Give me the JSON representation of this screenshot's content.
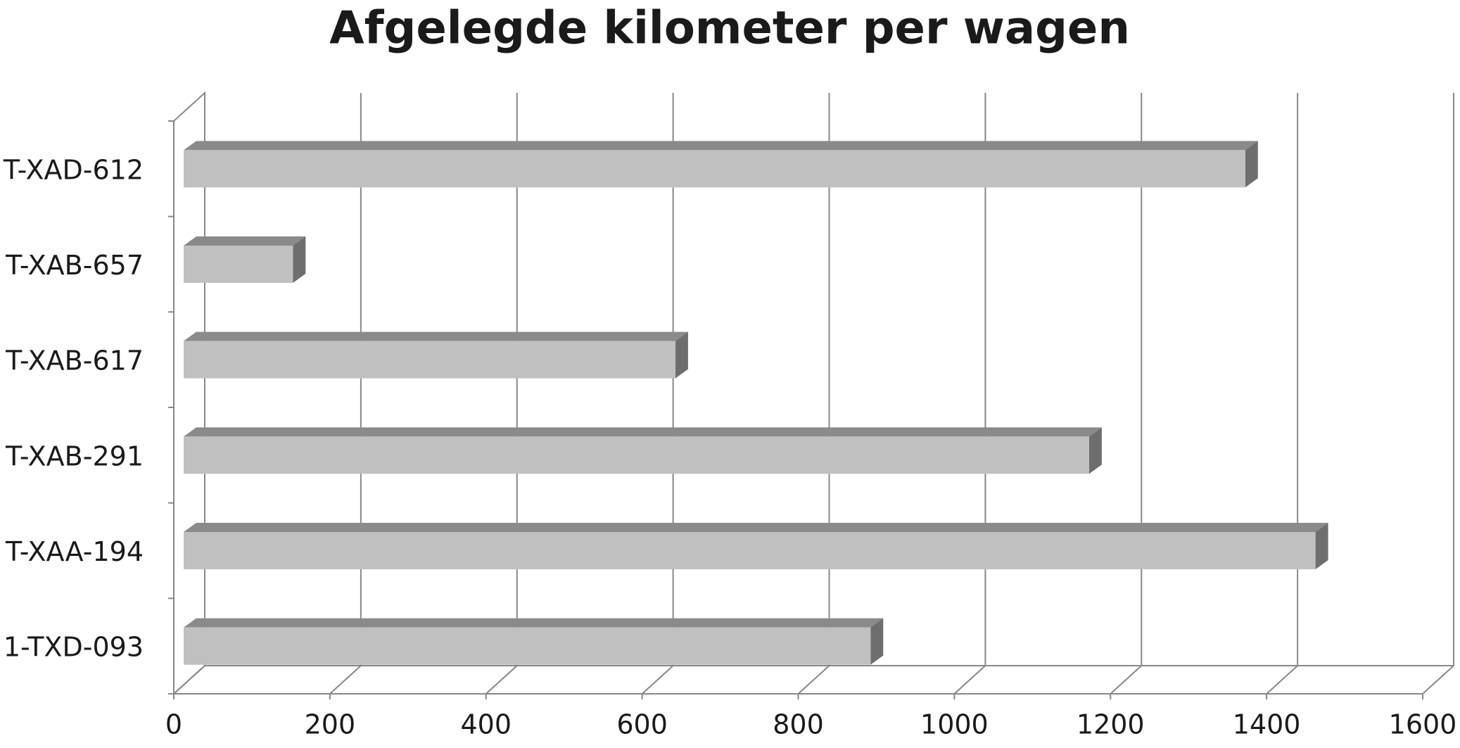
{
  "chart_data": {
    "type": "bar",
    "orientation": "horizontal",
    "title": "Afgelegde kilometer per wagen",
    "categories": [
      "T-XAD-612",
      "T-XAB-657",
      "T-XAB-617",
      "T-XAB-291",
      "T-XAA-194",
      "1-TXD-093"
    ],
    "values": [
      1360,
      140,
      630,
      1160,
      1450,
      880
    ],
    "color": "#c0c0c0",
    "xlim": [
      0,
      1600
    ],
    "xticks": [
      0,
      200,
      400,
      600,
      800,
      1000,
      1200,
      1400,
      1600
    ],
    "grid": true
  }
}
